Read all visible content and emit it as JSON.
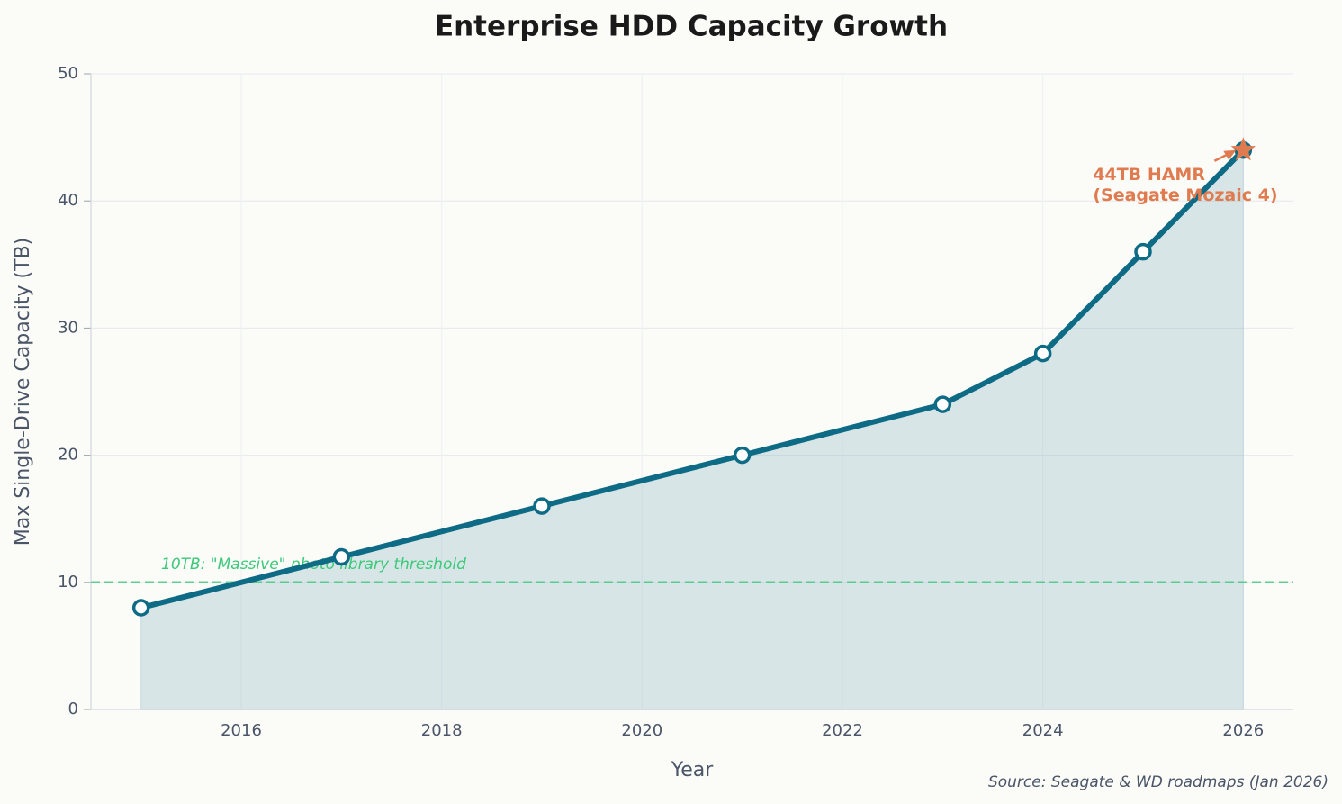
{
  "chart_data": {
    "type": "line",
    "title": "Enterprise HDD Capacity Growth",
    "xlabel": "Year",
    "ylabel": "Max Single-Drive Capacity (TB)",
    "x": [
      2015,
      2017,
      2019,
      2021,
      2023,
      2024,
      2025,
      2026
    ],
    "values": [
      8,
      12,
      16,
      20,
      24,
      28,
      36,
      44
    ],
    "color": "#0e6b85",
    "fill": true,
    "xlim": [
      2014.5,
      2026.5
    ],
    "xticks": [
      2016,
      2018,
      2020,
      2022,
      2024,
      2026
    ],
    "ylim": [
      0,
      50
    ],
    "yticks": [
      0,
      10,
      20,
      30,
      40,
      50
    ],
    "grid": true,
    "threshold": {
      "value": 10,
      "label": "10TB: \"Massive\" photo library threshold",
      "color": "#3cc97a"
    },
    "annotation": {
      "lines": [
        "44TB HAMR",
        "(Seagate Mozaic 4)"
      ],
      "color": "#e07b4f"
    },
    "source": "Source: Seagate & WD roadmaps (Jan 2026)"
  }
}
